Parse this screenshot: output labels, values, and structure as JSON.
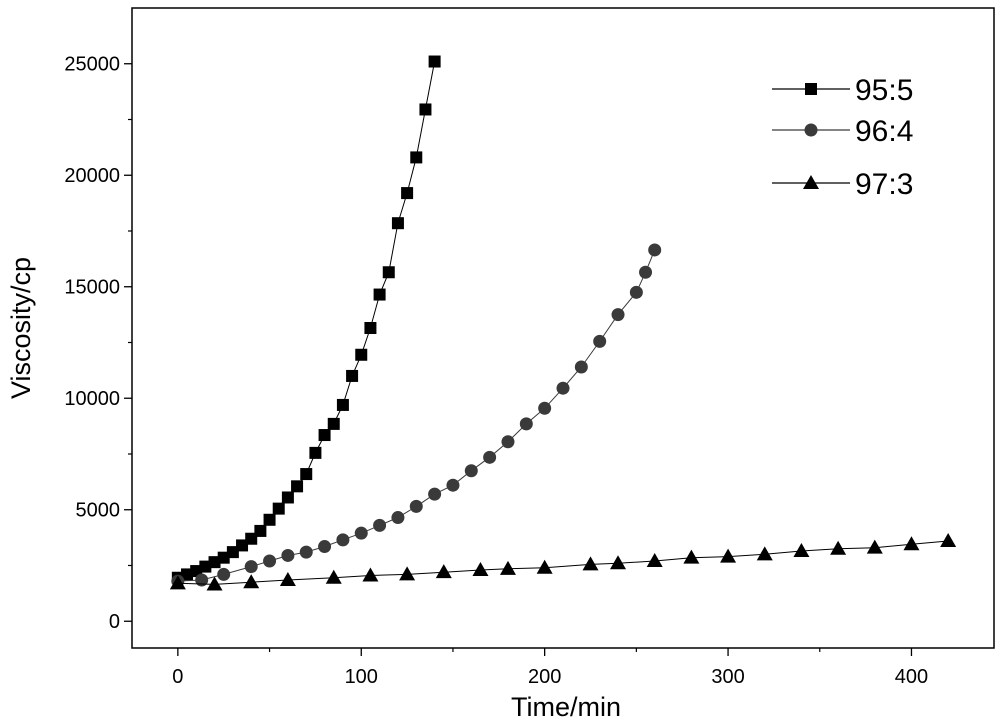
{
  "chart_data": {
    "type": "line",
    "title": "",
    "xlabel": "Time/min",
    "ylabel": "Viscosity/cp",
    "xlim": [
      -25,
      445
    ],
    "ylim": [
      -1200,
      27500
    ],
    "xticks": [
      0,
      100,
      200,
      300,
      400
    ],
    "yticks": [
      0,
      5000,
      10000,
      15000,
      20000,
      25000
    ],
    "grid": false,
    "legend_position": "top-right",
    "series": [
      {
        "name": "95:5",
        "marker": "square",
        "color": "#000000",
        "x": [
          0,
          5,
          10,
          15,
          20,
          25,
          30,
          35,
          40,
          45,
          50,
          55,
          60,
          65,
          70,
          75,
          80,
          85,
          90,
          95,
          100,
          105,
          110,
          115,
          120,
          125,
          130,
          135,
          140
        ],
        "y": [
          1950,
          2100,
          2250,
          2450,
          2650,
          2850,
          3100,
          3400,
          3700,
          4050,
          4550,
          5050,
          5550,
          6050,
          6600,
          7550,
          8350,
          8850,
          9700,
          11000,
          11950,
          13150,
          14650,
          15650,
          17850,
          19200,
          20800,
          22950,
          25100
        ]
      },
      {
        "name": "96:4",
        "marker": "circle",
        "color": "#3a3a3a",
        "x": [
          0,
          13,
          25,
          40,
          50,
          60,
          70,
          80,
          90,
          100,
          110,
          120,
          130,
          140,
          150,
          160,
          170,
          180,
          190,
          200,
          210,
          220,
          230,
          240,
          250,
          255,
          260
        ],
        "y": [
          1800,
          1850,
          2100,
          2450,
          2700,
          2950,
          3100,
          3350,
          3650,
          3950,
          4300,
          4650,
          5150,
          5700,
          6100,
          6750,
          7350,
          8050,
          8850,
          9550,
          10450,
          11400,
          12550,
          13750,
          14750,
          15650,
          16650
        ]
      },
      {
        "name": "97:3",
        "marker": "triangle",
        "color": "#000000",
        "x": [
          0,
          20,
          40,
          60,
          85,
          105,
          125,
          145,
          165,
          180,
          200,
          225,
          240,
          260,
          280,
          300,
          320,
          340,
          360,
          380,
          400,
          420
        ],
        "y": [
          1700,
          1650,
          1750,
          1850,
          1950,
          2050,
          2100,
          2200,
          2300,
          2350,
          2400,
          2550,
          2600,
          2700,
          2850,
          2900,
          3000,
          3150,
          3250,
          3300,
          3450,
          3600
        ]
      }
    ]
  }
}
